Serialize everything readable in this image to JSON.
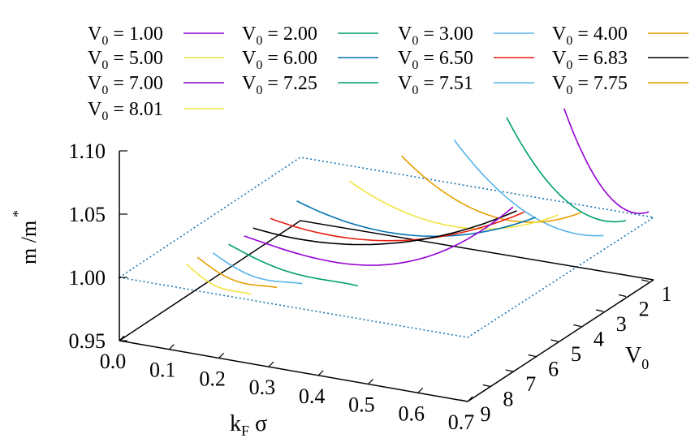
{
  "chart_data": {
    "type": "line",
    "projection": "3d-surface-slices",
    "title": "",
    "xlabel": "k",
    "xlabel_sub": "F",
    "xlabel_suffix": " σ",
    "ylabel_sub": "0",
    "ylabel": "V",
    "zlabel": "m*/m",
    "zlabel_sup": "*",
    "zlabel_base": "m /m",
    "xlim": [
      0.0,
      0.7
    ],
    "ylim": [
      1,
      9
    ],
    "zlim": [
      0.95,
      1.1
    ],
    "x_ticks": [
      "0.0",
      "0.1",
      "0.2",
      "0.3",
      "0.4",
      "0.5",
      "0.6",
      "0.7"
    ],
    "y_ticks": [
      "1",
      "2",
      "3",
      "4",
      "5",
      "6",
      "7",
      "8",
      "9"
    ],
    "z_ticks": [
      "0.95",
      "1.00",
      "1.05",
      "1.10"
    ],
    "reference_plane_z": 1.0,
    "legend": {
      "placement": "top",
      "prefix": "V",
      "prefix_sub": "0",
      "eq": " = "
    },
    "series": [
      {
        "name": "1.00",
        "color": "#9400d3",
        "v0": 1.0,
        "x": [
          0.53,
          0.7
        ],
        "z": [
          1.075,
          1.005
        ]
      },
      {
        "name": "2.00",
        "color": "#009e73",
        "v0": 2.0,
        "x": [
          0.46,
          0.7
        ],
        "z": [
          1.075,
          1.01
        ]
      },
      {
        "name": "3.00",
        "color": "#56b4e9",
        "v0": 3.0,
        "x": [
          0.4,
          0.7
        ],
        "z": [
          1.065,
          1.01
        ]
      },
      {
        "name": "4.00",
        "color": "#e69f00",
        "v0": 4.0,
        "x": [
          0.34,
          0.7
        ],
        "z": [
          1.06,
          1.04
        ]
      },
      {
        "name": "5.00",
        "color": "#f0e442",
        "v0": 5.0,
        "x": [
          0.28,
          0.7
        ],
        "z": [
          1.048,
          1.05
        ]
      },
      {
        "name": "6.00",
        "color": "#0072b2",
        "v0": 6.0,
        "x": [
          0.22,
          0.7
        ],
        "z": [
          1.04,
          1.06
        ]
      },
      {
        "name": "6.50",
        "color": "#e51e10",
        "v0": 6.5,
        "x": [
          0.19,
          0.7
        ],
        "z": [
          1.03,
          1.07
        ]
      },
      {
        "name": "6.83",
        "color": "#000000",
        "v0": 6.83,
        "x": [
          0.17,
          0.7
        ],
        "z": [
          1.025,
          1.075
        ]
      },
      {
        "name": "7.00",
        "color": "#9400d3",
        "v0": 7.0,
        "x": [
          0.16,
          0.7
        ],
        "z": [
          1.02,
          1.08
        ]
      },
      {
        "name": "7.25",
        "color": "#009e73",
        "v0": 7.25,
        "x": [
          0.14,
          0.4
        ],
        "z": [
          1.015,
          1.0
        ]
      },
      {
        "name": "7.51",
        "color": "#56b4e9",
        "v0": 7.51,
        "x": [
          0.12,
          0.3
        ],
        "z": [
          1.01,
          0.998
        ]
      },
      {
        "name": "7.75",
        "color": "#e69f00",
        "v0": 7.75,
        "x": [
          0.1,
          0.26
        ],
        "z": [
          1.008,
          0.995
        ]
      },
      {
        "name": "8.01",
        "color": "#f0e442",
        "v0": 8.01,
        "x": [
          0.09,
          0.22
        ],
        "z": [
          1.005,
          0.99
        ]
      }
    ]
  }
}
